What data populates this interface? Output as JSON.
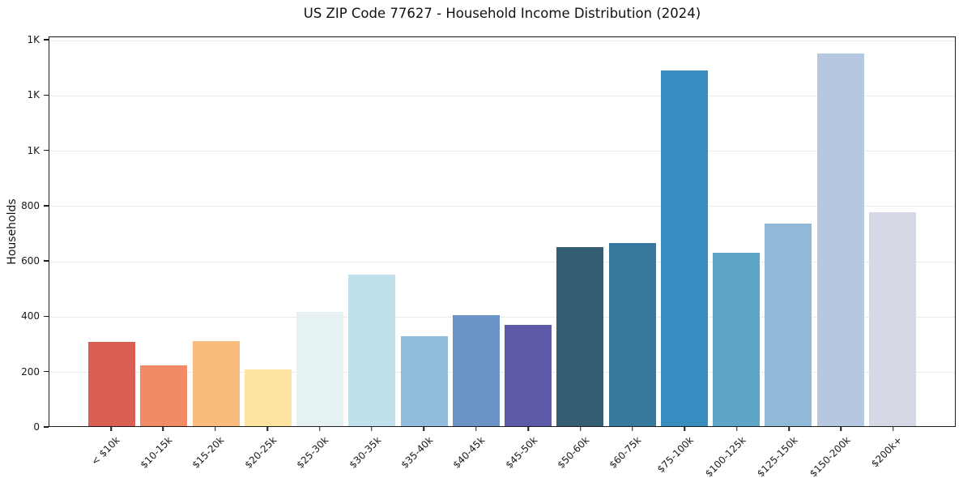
{
  "chart_data": {
    "type": "bar",
    "title": "US ZIP Code 77627 - Household Income Distribution (2024)",
    "xlabel": "",
    "ylabel": "Households",
    "categories": [
      "< $10k",
      "$10-15k",
      "$15-20k",
      "$20-25k",
      "$25-30k",
      "$30-35k",
      "$35-40k",
      "$40-45k",
      "$45-50k",
      "$50-60k",
      "$60-75k",
      "$75-100k",
      "$100-125k",
      "$125-150k",
      "$150-200k",
      "$200k+"
    ],
    "values": [
      305,
      221,
      309,
      204,
      413,
      549,
      326,
      400,
      365,
      648,
      662,
      1286,
      628,
      733,
      1347,
      772
    ],
    "colors": [
      "#d95f55",
      "#f18a66",
      "#fabc7d",
      "#fde2a0",
      "#e5f1f2",
      "#c0e0ec",
      "#90bddc",
      "#6b93c6",
      "#5d5ba8",
      "#365e73",
      "#37789f",
      "#388dc0",
      "#5ea6c8",
      "#90b8d7",
      "#b6c8df",
      "#d6d9e5"
    ],
    "ylim": [
      0,
      1400
    ],
    "yticks": [
      0,
      200,
      400,
      600,
      800,
      1000,
      1200,
      1400
    ],
    "ytick_labels": [
      "0",
      "200",
      "400",
      "600",
      "800",
      "1K",
      "1K",
      "1K"
    ],
    "grid": "horizontal-light-gray",
    "legend": "none",
    "x_tick_rotation": 45
  }
}
